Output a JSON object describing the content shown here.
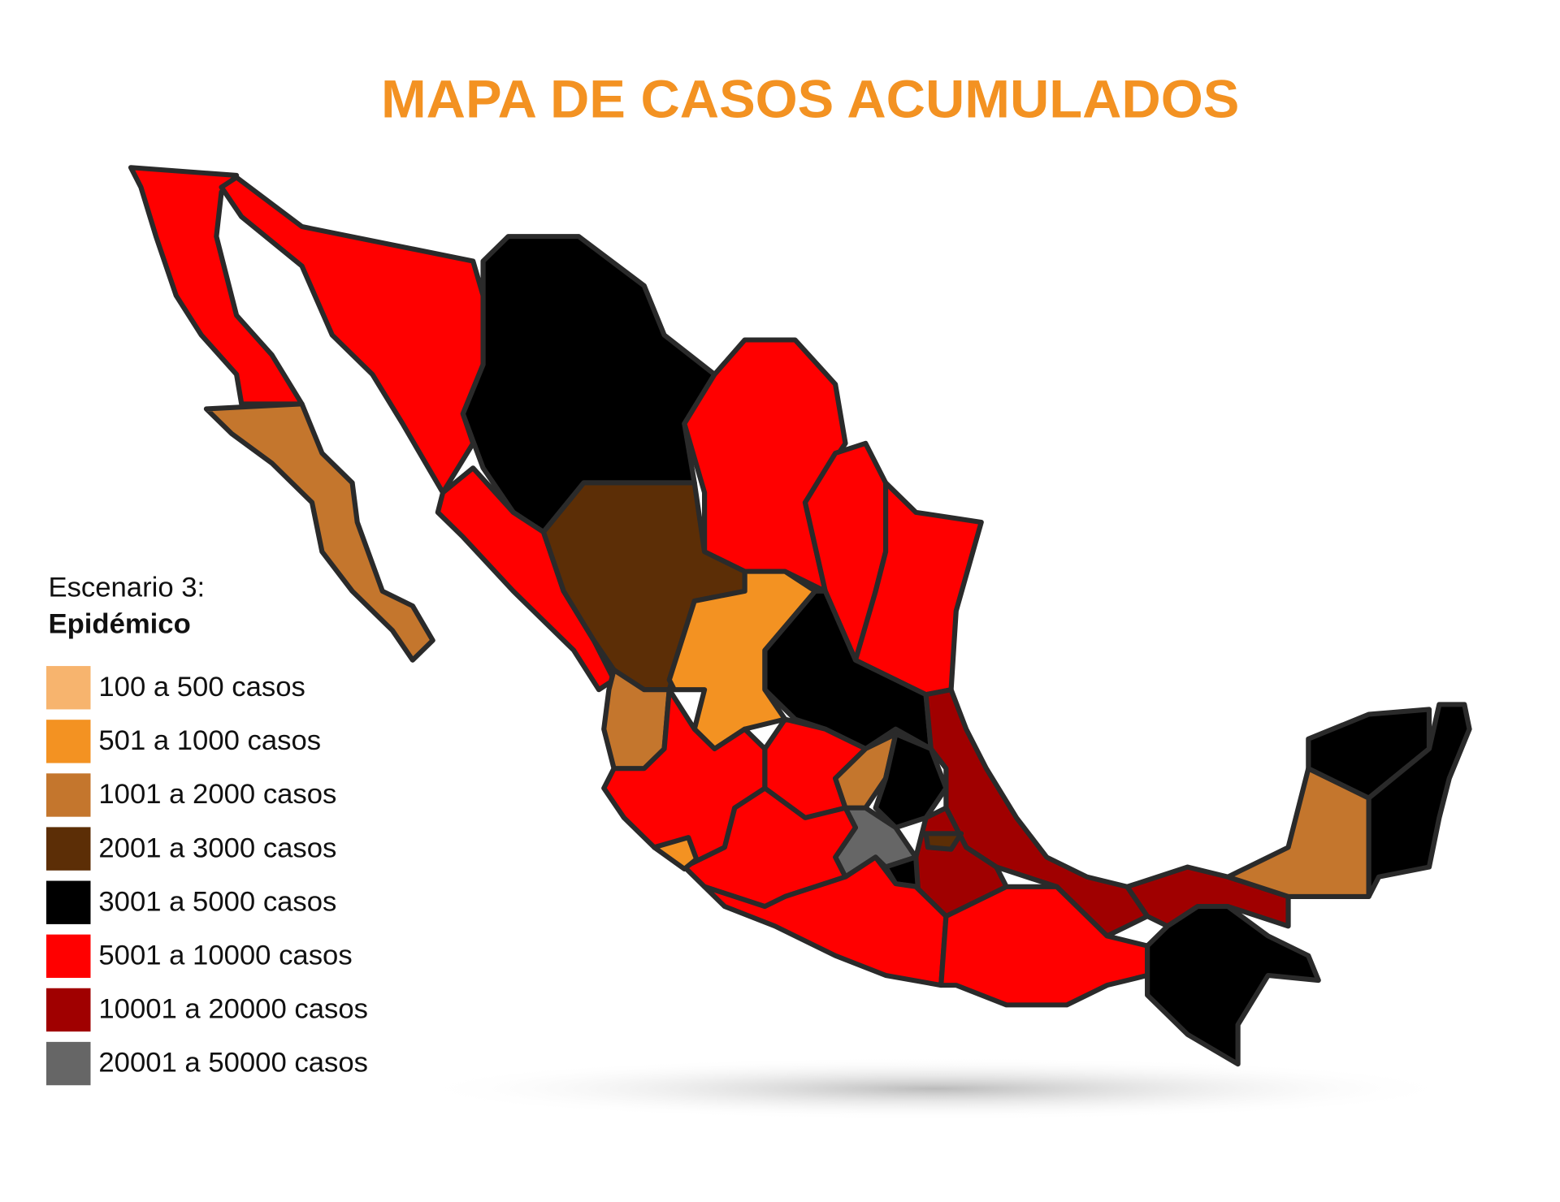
{
  "title": "MAPA DE CASOS ACUMULADOS",
  "legend": {
    "title": "Escenario 3:",
    "subtitle": "Epidémico",
    "items": [
      {
        "label": "100 a 500 casos",
        "color": "#f7b46e"
      },
      {
        "label": "501 a 1000 casos",
        "color": "#f39222"
      },
      {
        "label": "1001 a 2000 casos",
        "color": "#c4762d"
      },
      {
        "label": "2001 a 3000 casos",
        "color": "#5c2e06"
      },
      {
        "label": "3001 a 5000 casos",
        "color": "#000000"
      },
      {
        "label": "5001 a 10000 casos",
        "color": "#ff0000"
      },
      {
        "label": "10001 a 20000 casos",
        "color": "#a00000"
      },
      {
        "label": "20001 a 50000 casos",
        "color": "#666666"
      }
    ]
  }
}
